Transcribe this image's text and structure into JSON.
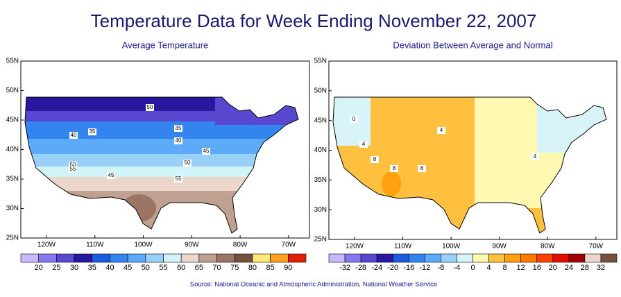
{
  "title": "Temperature Data for Week Ending November 22, 2007",
  "source": "Source:  National Oceanic and Atmospheric Administration, National Weather Service",
  "maps": [
    {
      "title": "Average Temperature",
      "lat_labels": [
        "55N",
        "50N",
        "45N",
        "40N",
        "35N",
        "30N",
        "25N"
      ],
      "lon_labels": [
        "120W",
        "110W",
        "100W",
        "90W",
        "80W",
        "70W"
      ],
      "contour_labels": [
        50,
        35,
        35,
        40,
        40,
        45,
        50,
        55,
        50,
        45,
        55
      ],
      "colorbar": {
        "labels": [
          20,
          25,
          30,
          35,
          40,
          45,
          50,
          55,
          60,
          65,
          70,
          75,
          80,
          85,
          90
        ],
        "colors": [
          "#c8b8ff",
          "#8878f0",
          "#5848d0",
          "#2818a0",
          "#1c5ce0",
          "#3484f0",
          "#5caaf8",
          "#98d0f8",
          "#d0f4f8",
          "#ecd6cc",
          "#c0a090",
          "#9c7464",
          "#785040",
          "#ffe878",
          "#ffa020",
          "#e02000"
        ]
      }
    },
    {
      "title": "Deviation Between Average and Normal",
      "lat_labels": [
        "55N",
        "50N",
        "45N",
        "40N",
        "35N",
        "30N",
        "25N"
      ],
      "lon_labels": [
        "120W",
        "110W",
        "100W",
        "90W",
        "80W",
        "70W"
      ],
      "contour_labels": [
        0,
        4,
        4,
        8,
        8,
        8,
        4
      ],
      "colorbar": {
        "labels": [
          -32,
          -28,
          -24,
          -20,
          -16,
          -12,
          -8,
          -4,
          0,
          4,
          8,
          12,
          16,
          20,
          24,
          28,
          32
        ],
        "colors": [
          "#c8b8ff",
          "#8878f0",
          "#5848d0",
          "#2818a0",
          "#1c5ce0",
          "#3484f0",
          "#5caaf8",
          "#98d0f8",
          "#d8f4f8",
          "#fff8b0",
          "#ffc040",
          "#ffa010",
          "#ff7800",
          "#ff4000",
          "#e01000",
          "#a00000",
          "#ecd6cc",
          "#785040"
        ]
      }
    }
  ]
}
